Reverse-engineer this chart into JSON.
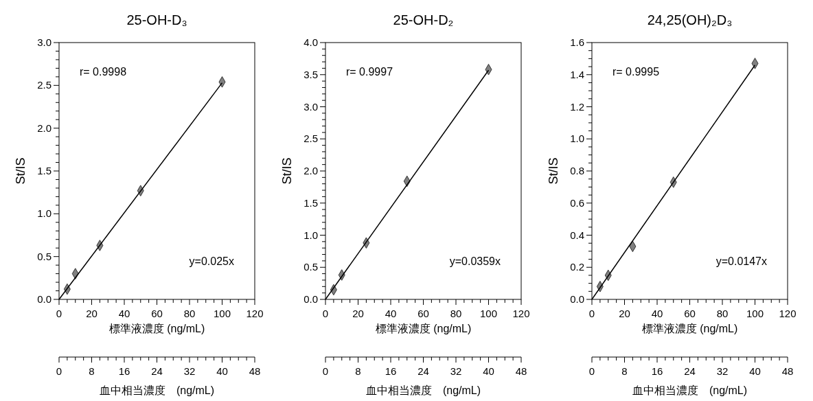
{
  "chart_data": [
    {
      "type": "scatter",
      "title": "25-OH-D₃",
      "xlabel": "標準液濃度 (ng/mL)",
      "ylabel": "St/IS",
      "x2label": "血中相当濃度　(ng/mL)",
      "xlim": [
        0,
        120
      ],
      "ylim": [
        0,
        3
      ],
      "x2lim": [
        0,
        48
      ],
      "xticks": [
        0,
        {
          "value": 5,
          "label": null
        },
        {
          "value": 10,
          "label": null
        },
        {
          "value": 15,
          "label": null
        },
        20,
        {
          "value": 25,
          "label": null
        },
        {
          "value": 30,
          "label": null
        },
        {
          "value": 35,
          "label": null
        },
        40,
        {
          "value": 45,
          "label": null
        },
        {
          "value": 50,
          "label": null
        },
        {
          "value": 55,
          "label": null
        },
        60,
        {
          "value": 65,
          "label": null
        },
        {
          "value": 70,
          "label": null
        },
        {
          "value": 75,
          "label": null
        },
        80,
        {
          "value": 85,
          "label": null
        },
        {
          "value": 90,
          "label": null
        },
        {
          "value": 95,
          "label": null
        },
        100,
        {
          "value": 105,
          "label": null
        },
        {
          "value": 110,
          "label": null
        },
        {
          "value": 115,
          "label": null
        },
        120
      ],
      "x2ticks": [
        0,
        {
          "value": 2,
          "label": null
        },
        {
          "value": 4,
          "label": null
        },
        {
          "value": 6,
          "label": null
        },
        8,
        {
          "value": 10,
          "label": null
        },
        {
          "value": 12,
          "label": null
        },
        {
          "value": 14,
          "label": null
        },
        16,
        {
          "value": 18,
          "label": null
        },
        {
          "value": 20,
          "label": null
        },
        {
          "value": 22,
          "label": null
        },
        24,
        {
          "value": 26,
          "label": null
        },
        {
          "value": 28,
          "label": null
        },
        {
          "value": 30,
          "label": null
        },
        32,
        {
          "value": 34,
          "label": null
        },
        {
          "value": 36,
          "label": null
        },
        {
          "value": 38,
          "label": null
        },
        40,
        {
          "value": 42,
          "label": null
        },
        {
          "value": 44,
          "label": null
        },
        {
          "value": 46,
          "label": null
        },
        48
      ],
      "yticks": [
        {
          "value": 0,
          "label": "0.0"
        },
        {
          "value": 0.1,
          "label": null
        },
        {
          "value": 0.2,
          "label": null
        },
        {
          "value": 0.3,
          "label": null
        },
        {
          "value": 0.4,
          "label": null
        },
        0.5,
        {
          "value": 0.6,
          "label": null
        },
        {
          "value": 0.7,
          "label": null
        },
        {
          "value": 0.8,
          "label": null
        },
        {
          "value": 0.9,
          "label": null
        },
        {
          "value": 1,
          "label": "1.0"
        },
        {
          "value": 1.1,
          "label": null
        },
        {
          "value": 1.2,
          "label": null
        },
        {
          "value": 1.3,
          "label": null
        },
        {
          "value": 1.4,
          "label": null
        },
        1.5,
        {
          "value": 1.6,
          "label": null
        },
        {
          "value": 1.7,
          "label": null
        },
        {
          "value": 1.8,
          "label": null
        },
        {
          "value": 1.9,
          "label": null
        },
        {
          "value": 2,
          "label": "2.0"
        },
        {
          "value": 2.1,
          "label": null
        },
        {
          "value": 2.2,
          "label": null
        },
        {
          "value": 2.3,
          "label": null
        },
        {
          "value": 2.4,
          "label": null
        },
        2.5,
        {
          "value": 2.6,
          "label": null
        },
        {
          "value": 2.7,
          "label": null
        },
        {
          "value": 2.8,
          "label": null
        },
        {
          "value": 2.9,
          "label": null
        },
        {
          "value": 3,
          "label": "3.0"
        }
      ],
      "annotations": [
        "r= 0.9998",
        "y=0.025x"
      ],
      "series": [
        {
          "marker": "diamond",
          "color": "#808080",
          "x": [
            5,
            10,
            25,
            50,
            100
          ],
          "values": [
            0.12,
            0.3,
            0.63,
            1.27,
            2.54
          ]
        },
        {
          "type": "line",
          "line_style": "solid",
          "color": "#000000",
          "x": [
            0,
            100
          ],
          "values": [
            0,
            2.53
          ]
        }
      ]
    },
    {
      "type": "scatter",
      "title": "25-OH-D₂",
      "xlabel": "標準液濃度 (ng/mL)",
      "ylabel": "St/IS",
      "x2label": "血中相当濃度　(ng/mL)",
      "xlim": [
        0,
        120
      ],
      "ylim": [
        0,
        4
      ],
      "x2lim": [
        0,
        48
      ],
      "xticks": [
        0,
        {
          "value": 5,
          "label": null
        },
        {
          "value": 10,
          "label": null
        },
        {
          "value": 15,
          "label": null
        },
        20,
        {
          "value": 25,
          "label": null
        },
        {
          "value": 30,
          "label": null
        },
        {
          "value": 35,
          "label": null
        },
        40,
        {
          "value": 45,
          "label": null
        },
        {
          "value": 50,
          "label": null
        },
        {
          "value": 55,
          "label": null
        },
        60,
        {
          "value": 65,
          "label": null
        },
        {
          "value": 70,
          "label": null
        },
        {
          "value": 75,
          "label": null
        },
        80,
        {
          "value": 85,
          "label": null
        },
        {
          "value": 90,
          "label": null
        },
        {
          "value": 95,
          "label": null
        },
        100,
        {
          "value": 105,
          "label": null
        },
        {
          "value": 110,
          "label": null
        },
        {
          "value": 115,
          "label": null
        },
        120
      ],
      "x2ticks": [
        0,
        {
          "value": 2,
          "label": null
        },
        {
          "value": 4,
          "label": null
        },
        {
          "value": 6,
          "label": null
        },
        8,
        {
          "value": 10,
          "label": null
        },
        {
          "value": 12,
          "label": null
        },
        {
          "value": 14,
          "label": null
        },
        16,
        {
          "value": 18,
          "label": null
        },
        {
          "value": 20,
          "label": null
        },
        {
          "value": 22,
          "label": null
        },
        24,
        {
          "value": 26,
          "label": null
        },
        {
          "value": 28,
          "label": null
        },
        {
          "value": 30,
          "label": null
        },
        32,
        {
          "value": 34,
          "label": null
        },
        {
          "value": 36,
          "label": null
        },
        {
          "value": 38,
          "label": null
        },
        40,
        {
          "value": 42,
          "label": null
        },
        {
          "value": 44,
          "label": null
        },
        {
          "value": 46,
          "label": null
        },
        48
      ],
      "yticks": [
        {
          "value": 0,
          "label": "0.0"
        },
        {
          "value": 0.1,
          "label": null
        },
        {
          "value": 0.2,
          "label": null
        },
        {
          "value": 0.3,
          "label": null
        },
        {
          "value": 0.4,
          "label": null
        },
        0.5,
        {
          "value": 0.6,
          "label": null
        },
        {
          "value": 0.7,
          "label": null
        },
        {
          "value": 0.8,
          "label": null
        },
        {
          "value": 0.9,
          "label": null
        },
        {
          "value": 1,
          "label": "1.0"
        },
        {
          "value": 1.1,
          "label": null
        },
        {
          "value": 1.2,
          "label": null
        },
        {
          "value": 1.3,
          "label": null
        },
        {
          "value": 1.4,
          "label": null
        },
        1.5,
        {
          "value": 1.6,
          "label": null
        },
        {
          "value": 1.7,
          "label": null
        },
        {
          "value": 1.8,
          "label": null
        },
        {
          "value": 1.9,
          "label": null
        },
        {
          "value": 2,
          "label": "2.0"
        },
        {
          "value": 2.1,
          "label": null
        },
        {
          "value": 2.2,
          "label": null
        },
        {
          "value": 2.3,
          "label": null
        },
        {
          "value": 2.4,
          "label": null
        },
        2.5,
        {
          "value": 2.6,
          "label": null
        },
        {
          "value": 2.7,
          "label": null
        },
        {
          "value": 2.8,
          "label": null
        },
        {
          "value": 2.9,
          "label": null
        },
        {
          "value": 3,
          "label": "3.0"
        },
        {
          "value": 3.1,
          "label": null
        },
        {
          "value": 3.2,
          "label": null
        },
        {
          "value": 3.3,
          "label": null
        },
        {
          "value": 3.4,
          "label": null
        },
        3.5,
        {
          "value": 3.6,
          "label": null
        },
        {
          "value": 3.7,
          "label": null
        },
        {
          "value": 3.8,
          "label": null
        },
        {
          "value": 3.9,
          "label": null
        },
        {
          "value": 4,
          "label": "4.0"
        }
      ],
      "annotations": [
        "r= 0.9997",
        "y=0.0359x"
      ],
      "series": [
        {
          "marker": "diamond",
          "color": "#808080",
          "x": [
            5,
            10,
            25,
            50,
            100
          ],
          "values": [
            0.15,
            0.38,
            0.88,
            1.84,
            3.58
          ]
        },
        {
          "type": "line",
          "line_style": "solid",
          "color": "#000000",
          "x": [
            0,
            100
          ],
          "values": [
            0,
            3.57
          ]
        }
      ]
    },
    {
      "type": "scatter",
      "title": "24,25(OH)₂D₃",
      "xlabel": "標準液濃度 (ng/mL)",
      "ylabel": "St/IS",
      "x2label": "血中相当濃度　(ng/mL)",
      "xlim": [
        0,
        120
      ],
      "ylim": [
        0,
        1.6
      ],
      "x2lim": [
        0,
        48
      ],
      "xticks": [
        0,
        {
          "value": 5,
          "label": null
        },
        {
          "value": 10,
          "label": null
        },
        {
          "value": 15,
          "label": null
        },
        20,
        {
          "value": 25,
          "label": null
        },
        {
          "value": 30,
          "label": null
        },
        {
          "value": 35,
          "label": null
        },
        40,
        {
          "value": 45,
          "label": null
        },
        {
          "value": 50,
          "label": null
        },
        {
          "value": 55,
          "label": null
        },
        60,
        {
          "value": 65,
          "label": null
        },
        {
          "value": 70,
          "label": null
        },
        {
          "value": 75,
          "label": null
        },
        80,
        {
          "value": 85,
          "label": null
        },
        {
          "value": 90,
          "label": null
        },
        {
          "value": 95,
          "label": null
        },
        100,
        {
          "value": 105,
          "label": null
        },
        {
          "value": 110,
          "label": null
        },
        {
          "value": 115,
          "label": null
        },
        120
      ],
      "x2ticks": [
        0,
        {
          "value": 2,
          "label": null
        },
        {
          "value": 4,
          "label": null
        },
        {
          "value": 6,
          "label": null
        },
        8,
        {
          "value": 10,
          "label": null
        },
        {
          "value": 12,
          "label": null
        },
        {
          "value": 14,
          "label": null
        },
        16,
        {
          "value": 18,
          "label": null
        },
        {
          "value": 20,
          "label": null
        },
        {
          "value": 22,
          "label": null
        },
        24,
        {
          "value": 26,
          "label": null
        },
        {
          "value": 28,
          "label": null
        },
        {
          "value": 30,
          "label": null
        },
        32,
        {
          "value": 34,
          "label": null
        },
        {
          "value": 36,
          "label": null
        },
        {
          "value": 38,
          "label": null
        },
        40,
        {
          "value": 42,
          "label": null
        },
        {
          "value": 44,
          "label": null
        },
        {
          "value": 46,
          "label": null
        },
        48
      ],
      "yticks": [
        {
          "value": 0,
          "label": "0.0"
        },
        {
          "value": 0.05,
          "label": null
        },
        {
          "value": 0.1,
          "label": null
        },
        {
          "value": 0.15,
          "label": null
        },
        0.2,
        {
          "value": 0.25,
          "label": null
        },
        {
          "value": 0.3,
          "label": null
        },
        {
          "value": 0.35,
          "label": null
        },
        0.4,
        {
          "value": 0.45,
          "label": null
        },
        {
          "value": 0.5,
          "label": null
        },
        {
          "value": 0.55,
          "label": null
        },
        0.6,
        {
          "value": 0.65,
          "label": null
        },
        {
          "value": 0.7,
          "label": null
        },
        {
          "value": 0.75,
          "label": null
        },
        0.8,
        {
          "value": 0.85,
          "label": null
        },
        {
          "value": 0.9,
          "label": null
        },
        {
          "value": 0.95,
          "label": null
        },
        {
          "value": 1,
          "label": "1.0"
        },
        {
          "value": 1.05,
          "label": null
        },
        {
          "value": 1.1,
          "label": null
        },
        {
          "value": 1.15,
          "label": null
        },
        1.2,
        {
          "value": 1.25,
          "label": null
        },
        {
          "value": 1.3,
          "label": null
        },
        {
          "value": 1.35,
          "label": null
        },
        1.4,
        {
          "value": 1.45,
          "label": null
        },
        {
          "value": 1.5,
          "label": null
        },
        {
          "value": 1.55,
          "label": null
        },
        1.6
      ],
      "annotations": [
        "r= 0.9995",
        "y=0.0147x"
      ],
      "series": [
        {
          "marker": "diamond",
          "color": "#808080",
          "x": [
            5,
            10,
            25,
            50,
            100
          ],
          "values": [
            0.08,
            0.15,
            0.33,
            0.73,
            1.47
          ]
        },
        {
          "type": "line",
          "line_style": "solid",
          "color": "#000000",
          "x": [
            0,
            100
          ],
          "values": [
            0,
            1.46
          ]
        }
      ]
    }
  ]
}
